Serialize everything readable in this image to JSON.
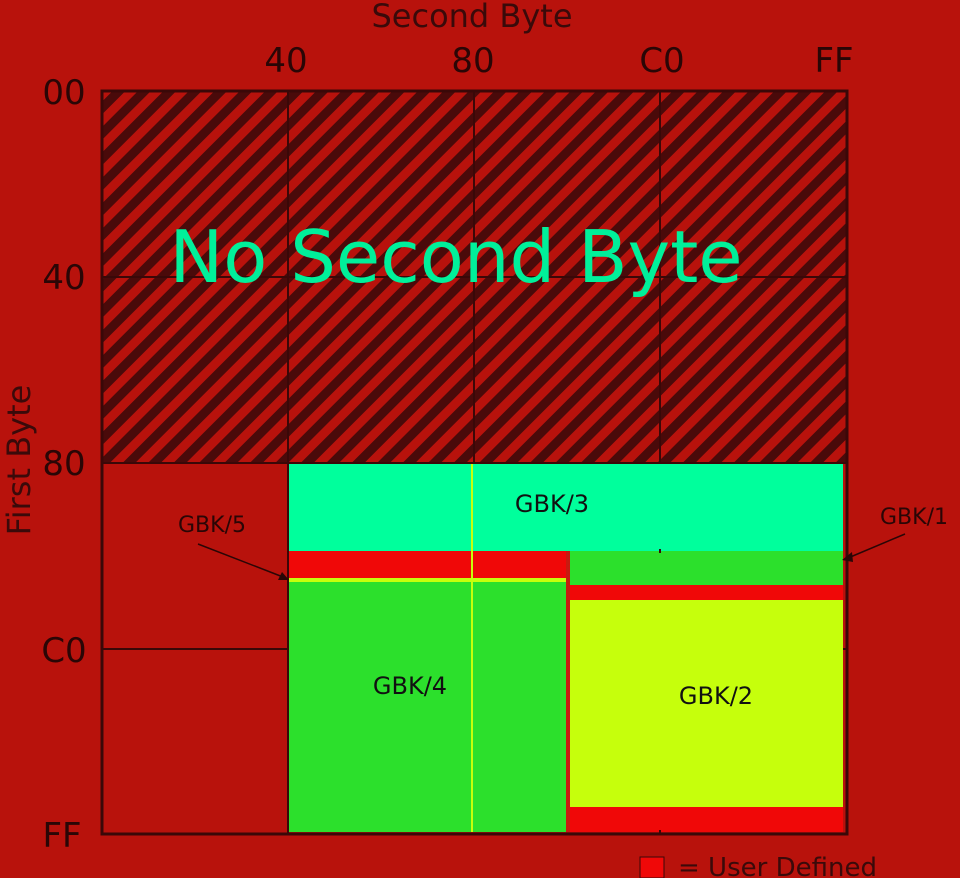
{
  "axes": {
    "x_title": "Second Byte",
    "y_title": "First Byte",
    "x_ticks": [
      "40",
      "80",
      "C0",
      "FF"
    ],
    "y_ticks": [
      "00",
      "40",
      "80",
      "C0",
      "FF"
    ]
  },
  "no_second_byte_label": "No Second Byte",
  "regions": {
    "gbk3": "GBK/3",
    "gbk4": "GBK/4",
    "gbk2": "GBK/2"
  },
  "callouts": {
    "gbk5": "GBK/5",
    "gbk1": "GBK/1"
  },
  "legend": {
    "user_defined": "= User Defined"
  },
  "colors": {
    "background": "#b8120c",
    "hatch_dark": "#5e0d0d",
    "gbk3": "#00ff9c",
    "gbk4": "#2ce02c",
    "gbk2": "#c6ff0c",
    "user_defined": "#f00808"
  }
}
